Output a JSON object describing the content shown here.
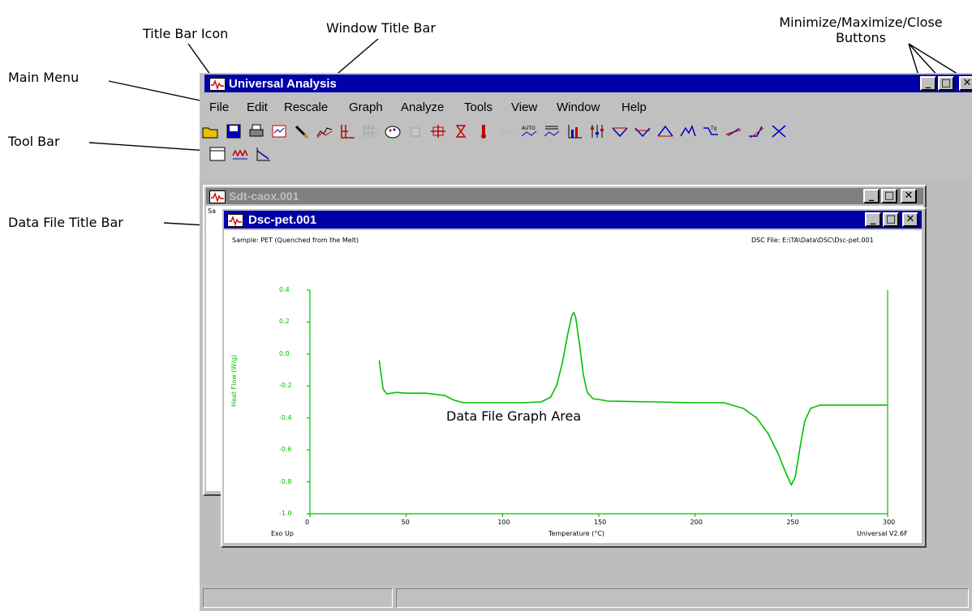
{
  "callouts": {
    "title_bar_icon": "Title Bar Icon",
    "window_title_bar": "Window Title Bar",
    "min_max_close_line1": "Minimize/Maximize/Close",
    "min_max_close_line2": "Buttons",
    "main_menu": "Main Menu",
    "tool_bar": "Tool Bar",
    "data_file_title_bar": "Data File Title Bar",
    "graph_area": "Data File Graph Area"
  },
  "app": {
    "title": "Universal Analysis",
    "menu": [
      "File",
      "Edit",
      "Rescale",
      "Graph",
      "Analyze",
      "Tools",
      "View",
      "Window",
      "Help"
    ],
    "toolbar_icons": [
      "open-folder-icon",
      "save-disk-icon",
      "print-icon",
      "print-preview-icon",
      "pencil-icon",
      "overlay-icon",
      "axes-icon",
      "grid-icon",
      "color-palette-icon",
      "disabled-icon",
      "cross-arrows-icon",
      "hourglass-icon",
      "thermometer-icon",
      "disabled-curve-icon",
      "auto-scale-icon",
      "list-curve-icon",
      "bar-graph-icon",
      "sliders-icon",
      "peak-down-icon",
      "peak-down-2-icon",
      "peak-up-icon",
      "peak-up-2-icon",
      "tg-icon",
      "tangent-icon",
      "onset-icon",
      "cross-icon",
      "table-icon",
      "waveform-icon",
      "plot-icon"
    ]
  },
  "windows": {
    "back": {
      "title": "Sdt-caox.001",
      "label_fragment": "Sa"
    },
    "front": {
      "title": "Dsc-pet.001",
      "sample": "Sample: PET (Quenched from the Melt)",
      "file": "DSC File: E:\\TA\\Data\\DSC\\Dsc-pet.001",
      "footer_left": "Exo Up",
      "footer_right": "Universal V2.6F"
    }
  },
  "chart_data": {
    "type": "line",
    "xlabel": "Temperature (°C)",
    "ylabel": "Heat Flow (W/g)",
    "xlim": [
      0,
      300
    ],
    "ylim": [
      -1.0,
      0.4
    ],
    "xticks": [
      "0",
      "50",
      "100",
      "150",
      "200",
      "250",
      "300"
    ],
    "yticks": [
      "0.4",
      "0.2",
      "0.0",
      "-0.2",
      "-0.4",
      "-0.6",
      "-0.8",
      "-1.0"
    ],
    "series": [
      {
        "color": "#00c000",
        "x": [
          36,
          38,
          40,
          45,
          50,
          60,
          70,
          75,
          80,
          90,
          100,
          110,
          120,
          125,
          128,
          131,
          134,
          136,
          137,
          138,
          140,
          142,
          144,
          147,
          150,
          155,
          165,
          180,
          200,
          215,
          225,
          232,
          238,
          243,
          247,
          250,
          252,
          255,
          257,
          260,
          265,
          275,
          290,
          300
        ],
        "y": [
          -0.04,
          -0.22,
          -0.25,
          -0.24,
          -0.245,
          -0.245,
          -0.26,
          -0.29,
          -0.305,
          -0.305,
          -0.305,
          -0.305,
          -0.3,
          -0.27,
          -0.2,
          -0.06,
          0.13,
          0.24,
          0.26,
          0.23,
          0.06,
          -0.13,
          -0.24,
          -0.28,
          -0.285,
          -0.295,
          -0.297,
          -0.3,
          -0.305,
          -0.305,
          -0.34,
          -0.4,
          -0.5,
          -0.62,
          -0.74,
          -0.82,
          -0.77,
          -0.55,
          -0.42,
          -0.34,
          -0.32,
          -0.32,
          -0.32,
          -0.32
        ]
      }
    ]
  },
  "colors": {
    "title_active": "#0000a8",
    "title_inactive": "#808080",
    "curve": "#00c000",
    "window_face": "#c0c0c0"
  }
}
